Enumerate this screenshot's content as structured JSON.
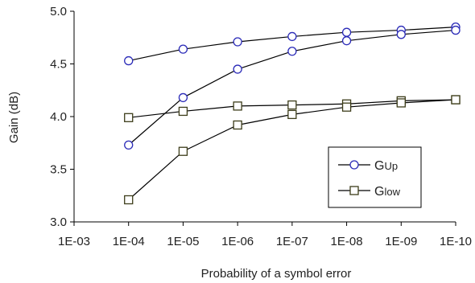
{
  "chart_data": {
    "type": "line",
    "xlabel": "Probability of a symbol error",
    "ylabel": "Gain (dB)",
    "x_categories": [
      "1E-03",
      "1E-04",
      "1E-05",
      "1E-06",
      "1E-07",
      "1E-08",
      "1E-09",
      "1E-10"
    ],
    "yticks": [
      "3.0",
      "3.5",
      "4.0",
      "4.5",
      "5.0"
    ],
    "ylim": [
      3.0,
      5.0
    ],
    "legend_position": "right",
    "series": [
      {
        "group": "up",
        "marker": "circle",
        "x": [
          "1E-04",
          "1E-05",
          "1E-06",
          "1E-07",
          "1E-08",
          "1E-09",
          "1E-10"
        ],
        "values": [
          4.53,
          4.64,
          4.71,
          4.76,
          4.8,
          4.82,
          4.85
        ]
      },
      {
        "group": "up",
        "marker": "circle",
        "x": [
          "1E-04",
          "1E-05",
          "1E-06",
          "1E-07",
          "1E-08",
          "1E-09",
          "1E-10"
        ],
        "values": [
          3.73,
          4.18,
          4.45,
          4.62,
          4.72,
          4.78,
          4.82
        ]
      },
      {
        "group": "low",
        "marker": "square",
        "x": [
          "1E-04",
          "1E-05",
          "1E-06",
          "1E-07",
          "1E-08",
          "1E-09",
          "1E-10"
        ],
        "values": [
          3.99,
          4.05,
          4.1,
          4.11,
          4.12,
          4.15,
          4.16
        ]
      },
      {
        "group": "low",
        "marker": "square",
        "x": [
          "1E-04",
          "1E-05",
          "1E-06",
          "1E-07",
          "1E-08",
          "1E-09",
          "1E-10"
        ],
        "values": [
          3.21,
          3.67,
          3.92,
          4.02,
          4.09,
          4.13,
          4.16
        ]
      }
    ],
    "legend": [
      {
        "marker": "circle",
        "main": "G",
        "sub": "Up"
      },
      {
        "marker": "square",
        "main": "G",
        "sub": "low"
      }
    ],
    "colors": {
      "line": "#000000",
      "circle": "#2b2bb8",
      "square": "#3d3d1a",
      "axis": "#000000"
    }
  }
}
